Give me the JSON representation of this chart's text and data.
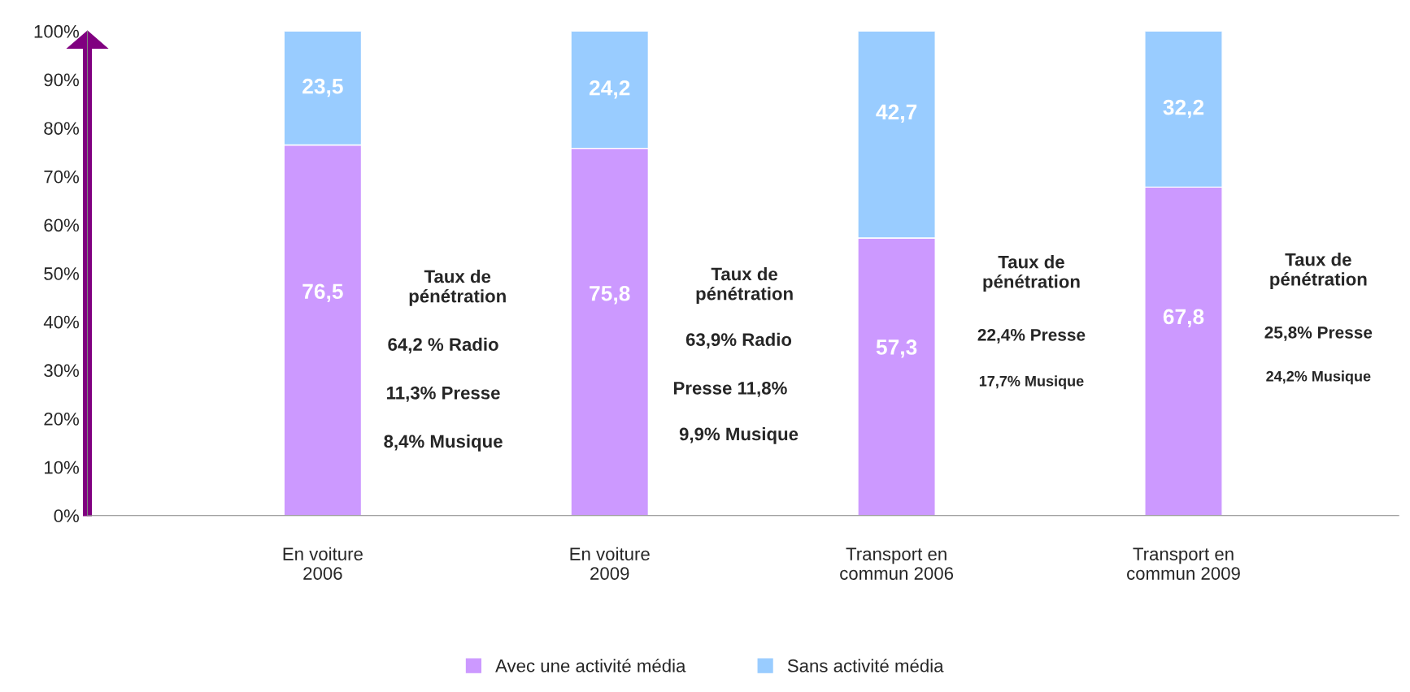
{
  "chart_data": {
    "type": "bar",
    "stacked": true,
    "categories": [
      "En voiture\n2006",
      "En voiture\n2009",
      "Transport en\ncommun 2006",
      "Transport en\ncommun 2009"
    ],
    "series": [
      {
        "name": "Avec une activité média",
        "color": "#cc99ff",
        "values": [
          76.5,
          75.8,
          57.3,
          67.8
        ],
        "value_labels": [
          "76,5",
          "75,8",
          "57,3",
          "67,8"
        ]
      },
      {
        "name": "Sans activité média",
        "color": "#99ccff",
        "values": [
          23.5,
          24.2,
          42.7,
          32.2
        ],
        "value_labels": [
          "23,5",
          "24,2",
          "42,7",
          "32,2"
        ]
      }
    ],
    "ylim": [
      0,
      100
    ],
    "yticks": [
      {
        "value": 0,
        "label": "0%"
      },
      {
        "value": 10,
        "label": "10%"
      },
      {
        "value": 20,
        "label": "20%"
      },
      {
        "value": 30,
        "label": "30%"
      },
      {
        "value": 40,
        "label": "40%"
      },
      {
        "value": 50,
        "label": "50%"
      },
      {
        "value": 60,
        "label": "60%"
      },
      {
        "value": 70,
        "label": "70%"
      },
      {
        "value": 80,
        "label": "80%"
      },
      {
        "value": 90,
        "label": "90%"
      },
      {
        "value": 100,
        "label": "100%"
      }
    ],
    "legend": "bottom",
    "grid": false,
    "annotations": [
      "Taux de\npénétration",
      "64,2 % Radio",
      "11,3% Presse",
      "8,4% Musique",
      "Taux de\npénétration",
      "63,9% Radio",
      "Presse 11,8%",
      "9,9% Musique",
      "Taux de\npénétration",
      "22,4% Presse",
      "17,7% Musique",
      "Taux de\npénétration",
      "25,8% Presse",
      "24,2% Musique"
    ]
  }
}
